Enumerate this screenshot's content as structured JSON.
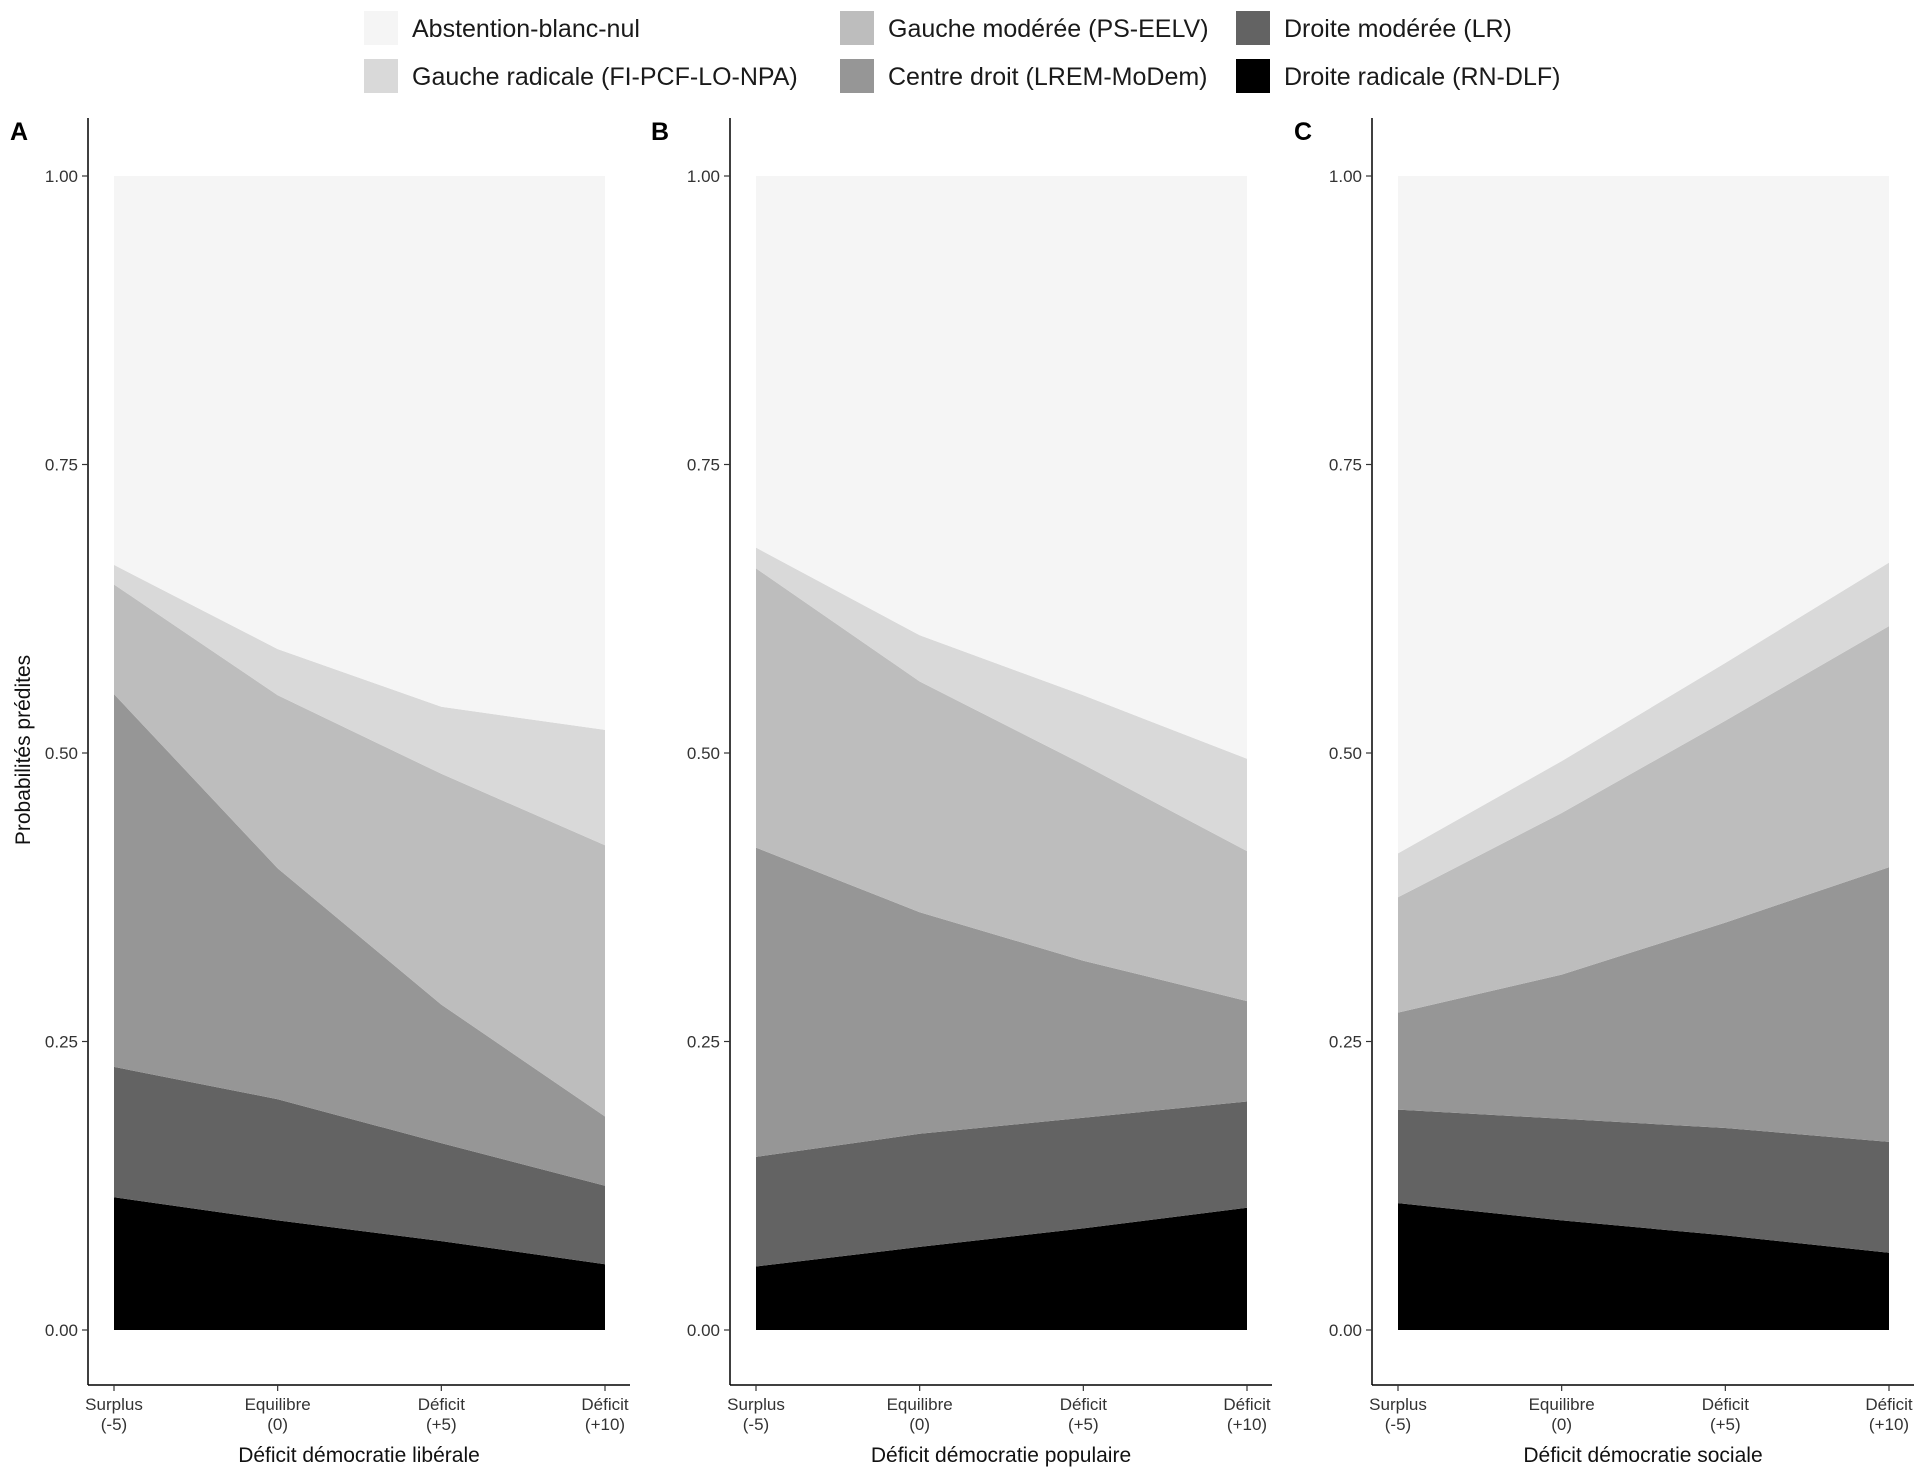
{
  "chart_data": {
    "type": "area",
    "stacked": true,
    "ylabel": "Probabilités prédites",
    "ylim": [
      0,
      1
    ],
    "yticks": [
      "0.00",
      "0.25",
      "0.50",
      "0.75",
      "1.00"
    ],
    "ytick_values": [
      0,
      0.25,
      0.5,
      0.75,
      1
    ],
    "x": [
      -5,
      0,
      5,
      10
    ],
    "xtick_lines": [
      [
        "Surplus",
        "(-5)"
      ],
      [
        "Equilibre",
        "(0)"
      ],
      [
        "Déficit",
        "(+5)"
      ],
      [
        "Déficit",
        "(+10)"
      ]
    ],
    "grid": false,
    "legend_position": "top",
    "legend": [
      {
        "name": "Abstention-blanc-nul",
        "color": "#f5f5f5"
      },
      {
        "name": "Gauche radicale (FI-PCF-LO-NPA)",
        "color": "#d9d9d9"
      },
      {
        "name": "Gauche modérée (PS-EELV)",
        "color": "#bdbdbd"
      },
      {
        "name": "Centre droit (LREM-MoDem)",
        "color": "#969696"
      },
      {
        "name": "Droite modérée (LR)",
        "color": "#636363"
      },
      {
        "name": "Droite radicale (RN-DLF)",
        "color": "#000000"
      }
    ],
    "panels": [
      {
        "tag": "A",
        "xlabel": "Déficit démocratie libérale",
        "series": [
          {
            "name": "Droite radicale (RN-DLF)",
            "values": [
              0.115,
              0.095,
              0.077,
              0.057
            ]
          },
          {
            "name": "Droite modérée (LR)",
            "values": [
              0.113,
              0.105,
              0.085,
              0.068
            ]
          },
          {
            "name": "Centre droit (LREM-MoDem)",
            "values": [
              0.323,
              0.2,
              0.12,
              0.06
            ]
          },
          {
            "name": "Gauche modérée (PS-EELV)",
            "values": [
              0.095,
              0.15,
              0.2,
              0.235
            ]
          },
          {
            "name": "Gauche radicale (FI-PCF-LO-NPA)",
            "values": [
              0.017,
              0.04,
              0.058,
              0.1
            ]
          },
          {
            "name": "Abstention-blanc-nul",
            "values": [
              0.337,
              0.41,
              0.46,
              0.48
            ]
          }
        ]
      },
      {
        "tag": "B",
        "xlabel": "Déficit démocratie populaire",
        "series": [
          {
            "name": "Droite radicale (RN-DLF)",
            "values": [
              0.055,
              0.072,
              0.088,
              0.106
            ]
          },
          {
            "name": "Droite modérée (LR)",
            "values": [
              0.095,
              0.098,
              0.096,
              0.092
            ]
          },
          {
            "name": "Centre droit (LREM-MoDem)",
            "values": [
              0.268,
              0.192,
              0.136,
              0.087
            ]
          },
          {
            "name": "Gauche modérée (PS-EELV)",
            "values": [
              0.242,
              0.2,
              0.17,
              0.13
            ]
          },
          {
            "name": "Gauche radicale (FI-PCF-LO-NPA)",
            "values": [
              0.018,
              0.04,
              0.06,
              0.08
            ]
          },
          {
            "name": "Abstention-blanc-nul",
            "values": [
              0.322,
              0.398,
              0.45,
              0.505
            ]
          }
        ]
      },
      {
        "tag": "C",
        "xlabel": "Déficit démocratie sociale",
        "series": [
          {
            "name": "Droite radicale (RN-DLF)",
            "values": [
              0.11,
              0.095,
              0.082,
              0.067
            ]
          },
          {
            "name": "Droite modérée (LR)",
            "values": [
              0.081,
              0.088,
              0.093,
              0.096
            ]
          },
          {
            "name": "Centre droit (LREM-MoDem)",
            "values": [
              0.084,
              0.125,
              0.178,
              0.238
            ]
          },
          {
            "name": "Gauche modérée (PS-EELV)",
            "values": [
              0.1,
              0.14,
              0.175,
              0.209
            ]
          },
          {
            "name": "Gauche radicale (FI-PCF-LO-NPA)",
            "values": [
              0.038,
              0.045,
              0.05,
              0.055
            ]
          },
          {
            "name": "Abstention-blanc-nul",
            "values": [
              0.587,
              0.507,
              0.422,
              0.335
            ]
          }
        ]
      }
    ]
  }
}
